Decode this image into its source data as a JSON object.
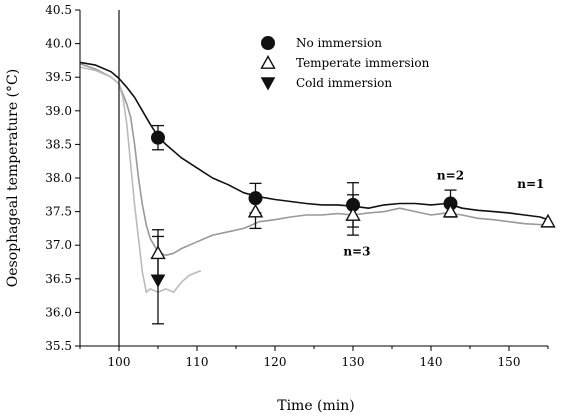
{
  "chart_data": {
    "type": "line",
    "title": "",
    "xlabel": "Time (min)",
    "ylabel": "Oesophageal temperature (°C)",
    "xlim": [
      95,
      155
    ],
    "ylim": [
      35.5,
      40.5
    ],
    "xticks": [
      100,
      110,
      120,
      130,
      140,
      150
    ],
    "yticks": [
      35.5,
      36.0,
      36.5,
      37.0,
      37.5,
      38.0,
      38.5,
      39.0,
      39.5,
      40.0,
      40.5
    ],
    "vertical_line_x": 100,
    "grid": false,
    "legend_position": "top-center",
    "legend": [
      {
        "label": "No immersion",
        "marker": "filled-circle"
      },
      {
        "label": "Temperate immersion",
        "marker": "open-triangle-up"
      },
      {
        "label": "Cold immersion",
        "marker": "filled-triangle-down"
      }
    ],
    "series": [
      {
        "marker": "filled-circle",
        "color": "#111111",
        "line": [
          [
            95,
            39.72
          ],
          [
            97,
            39.68
          ],
          [
            99,
            39.58
          ],
          [
            100,
            39.48
          ],
          [
            101,
            39.35
          ],
          [
            102,
            39.2
          ],
          [
            103,
            39.0
          ],
          [
            104,
            38.8
          ],
          [
            105,
            38.62
          ],
          [
            106,
            38.5
          ],
          [
            108,
            38.3
          ],
          [
            110,
            38.15
          ],
          [
            112,
            38.0
          ],
          [
            114,
            37.9
          ],
          [
            116,
            37.78
          ],
          [
            118,
            37.72
          ],
          [
            120,
            37.68
          ],
          [
            122,
            37.65
          ],
          [
            124,
            37.62
          ],
          [
            126,
            37.6
          ],
          [
            128,
            37.6
          ],
          [
            130,
            37.58
          ],
          [
            132,
            37.55
          ],
          [
            134,
            37.6
          ],
          [
            136,
            37.62
          ],
          [
            138,
            37.62
          ],
          [
            140,
            37.6
          ],
          [
            142,
            37.62
          ],
          [
            144,
            37.55
          ],
          [
            146,
            37.52
          ],
          [
            148,
            37.5
          ],
          [
            150,
            37.48
          ],
          [
            152,
            37.45
          ],
          [
            154,
            37.42
          ],
          [
            155,
            37.38
          ]
        ],
        "points": [
          {
            "x": 105,
            "y": 38.6,
            "err": 0.18
          },
          {
            "x": 117.5,
            "y": 37.7,
            "err": 0.22
          },
          {
            "x": 130,
            "y": 37.6,
            "err": 0.33
          },
          {
            "x": 142.5,
            "y": 37.62,
            "err": 0.2
          }
        ]
      },
      {
        "marker": "open-triangle-up",
        "color": "#999999",
        "line": [
          [
            95,
            39.7
          ],
          [
            97,
            39.62
          ],
          [
            99,
            39.5
          ],
          [
            100,
            39.4
          ],
          [
            101,
            39.1
          ],
          [
            101.5,
            38.9
          ],
          [
            102,
            38.5
          ],
          [
            102.5,
            38.0
          ],
          [
            103,
            37.6
          ],
          [
            103.5,
            37.3
          ],
          [
            104,
            37.1
          ],
          [
            105,
            36.9
          ],
          [
            106,
            36.85
          ],
          [
            107,
            36.88
          ],
          [
            108,
            36.95
          ],
          [
            110,
            37.05
          ],
          [
            112,
            37.15
          ],
          [
            114,
            37.2
          ],
          [
            116,
            37.25
          ],
          [
            118,
            37.35
          ],
          [
            120,
            37.38
          ],
          [
            122,
            37.42
          ],
          [
            124,
            37.45
          ],
          [
            126,
            37.45
          ],
          [
            128,
            37.47
          ],
          [
            130,
            37.45
          ],
          [
            132,
            37.48
          ],
          [
            134,
            37.5
          ],
          [
            136,
            37.55
          ],
          [
            138,
            37.5
          ],
          [
            140,
            37.45
          ],
          [
            142,
            37.48
          ],
          [
            144,
            37.45
          ],
          [
            146,
            37.4
          ],
          [
            148,
            37.38
          ],
          [
            150,
            37.35
          ],
          [
            152,
            37.32
          ],
          [
            155,
            37.3
          ]
        ],
        "points": [
          {
            "x": 105,
            "y": 36.88,
            "err": 0.35
          },
          {
            "x": 117.5,
            "y": 37.5,
            "err": 0.25
          },
          {
            "x": 130,
            "y": 37.45,
            "err": 0.3
          },
          {
            "x": 142.5,
            "y": 37.5,
            "err": 0.08
          },
          {
            "x": 155,
            "y": 37.35,
            "err": 0.0
          }
        ]
      },
      {
        "marker": "filled-triangle-down",
        "color": "#bbbbbb",
        "line": [
          [
            95,
            39.65
          ],
          [
            97,
            39.6
          ],
          [
            99,
            39.5
          ],
          [
            100,
            39.4
          ],
          [
            100.5,
            39.2
          ],
          [
            101,
            38.8
          ],
          [
            101.5,
            38.2
          ],
          [
            102,
            37.6
          ],
          [
            102.5,
            37.1
          ],
          [
            103,
            36.6
          ],
          [
            103.5,
            36.3
          ],
          [
            104,
            36.35
          ],
          [
            105,
            36.3
          ],
          [
            106,
            36.35
          ],
          [
            107,
            36.3
          ],
          [
            108,
            36.45
          ],
          [
            109,
            36.55
          ],
          [
            110,
            36.6
          ],
          [
            110.5,
            36.62
          ]
        ],
        "points": [
          {
            "x": 105,
            "y": 36.48,
            "err": 0.65
          }
        ]
      }
    ],
    "annotations": [
      {
        "text": "n=3",
        "x": 130.5,
        "y": 36.85
      },
      {
        "text": "n=2",
        "x": 142.5,
        "y": 37.98
      },
      {
        "text": "n=1",
        "x": 152.8,
        "y": 37.85
      }
    ]
  }
}
